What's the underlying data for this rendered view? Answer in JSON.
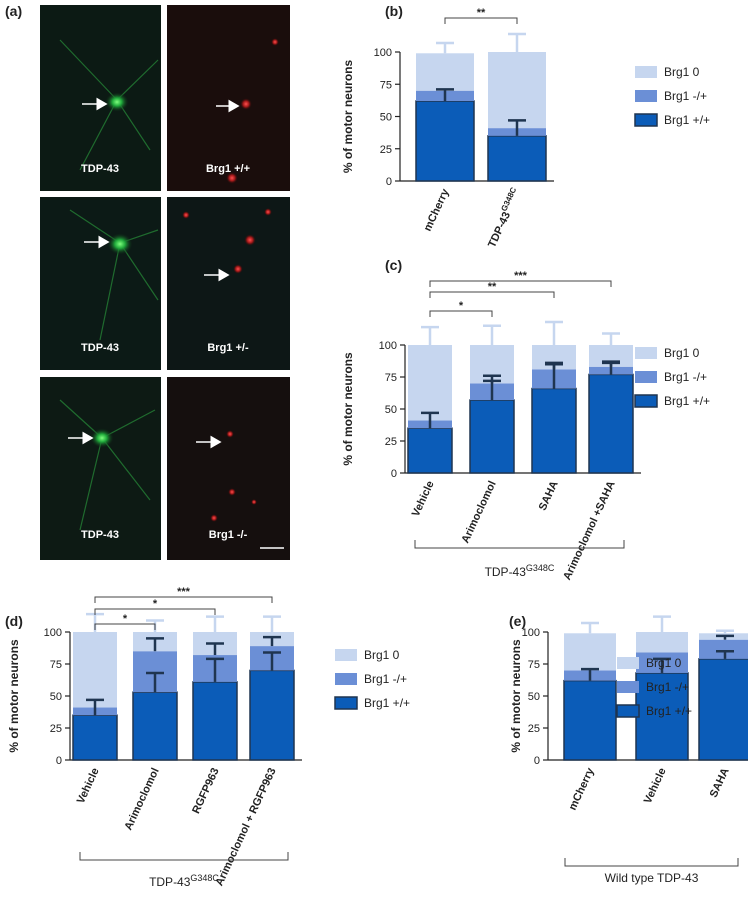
{
  "panel_a": {
    "label": "(a)",
    "rows": [
      {
        "left": "TDP-43",
        "right": "Brg1 +/+"
      },
      {
        "left": "TDP-43",
        "right": "Brg1 +/-"
      },
      {
        "left": "TDP-43",
        "right": "Brg1 -/-"
      }
    ]
  },
  "chart_data": [
    {
      "type": "stacked_bar",
      "label": "(b)",
      "y_label": "% of motor neurons",
      "categories": [
        "mCherry",
        "TDP-43"
      ],
      "category_superscripts": [
        null,
        "G348C"
      ],
      "ylim": [
        0,
        100
      ],
      "yticks": [
        0,
        25,
        50,
        75,
        100
      ],
      "series": [
        {
          "name": "Brg1 +/+",
          "color": "#0b5cb8",
          "values": [
            62,
            35
          ],
          "errors": [
            9,
            12
          ]
        },
        {
          "name": "Brg1 -/+",
          "color": "#6b8fd6",
          "values": [
            8,
            6
          ],
          "errors": [
            null,
            null
          ]
        },
        {
          "name": "Brg1 0",
          "color": "#c6d6ef",
          "values": [
            29,
            59
          ],
          "errors": [
            8,
            14
          ]
        }
      ],
      "significance": [
        {
          "pair": [
            "mCherry",
            "TDP-43"
          ],
          "label": "**"
        }
      ]
    },
    {
      "type": "stacked_bar",
      "label": "(c)",
      "y_label": "% of motor neurons",
      "categories": [
        "Vehicle",
        "Arimoclomol",
        "SAHA",
        "Arimoclomol +SAHA"
      ],
      "ylim": [
        0,
        100
      ],
      "yticks": [
        0,
        25,
        50,
        75,
        100
      ],
      "series": [
        {
          "name": "Brg1 +/+",
          "color": "#0b5cb8",
          "values": [
            35,
            57,
            66,
            77
          ],
          "errors": [
            12,
            15,
            19,
            9
          ]
        },
        {
          "name": "Brg1 -/+",
          "color": "#6b8fd6",
          "values": [
            6,
            13,
            15,
            6
          ],
          "errors": [
            null,
            6,
            5,
            4
          ]
        },
        {
          "name": "Brg1 0",
          "color": "#c6d6ef",
          "values": [
            59,
            30,
            19,
            17
          ],
          "errors": [
            14,
            15,
            18,
            9
          ]
        }
      ],
      "significance": [
        {
          "pair": [
            "Vehicle",
            "Arimoclomol"
          ],
          "label": "*"
        },
        {
          "pair": [
            "Vehicle",
            "SAHA"
          ],
          "label": "**"
        },
        {
          "pair": [
            "Vehicle",
            "Arimoclomol +SAHA"
          ],
          "label": "***"
        }
      ],
      "group_label": {
        "text": "TDP-43",
        "sup": "G348C"
      }
    },
    {
      "type": "stacked_bar",
      "label": "(d)",
      "y_label": "% of motor neurons",
      "categories": [
        "Vehicle",
        "Arimoclomol",
        "RGFP963",
        "Arimoclomol + RGFP963"
      ],
      "ylim": [
        0,
        100
      ],
      "yticks": [
        0,
        25,
        50,
        75,
        100
      ],
      "series": [
        {
          "name": "Brg1 +/+",
          "color": "#0b5cb8",
          "values": [
            35,
            53,
            61,
            70
          ],
          "errors": [
            12,
            15,
            18,
            14
          ]
        },
        {
          "name": "Brg1 -/+",
          "color": "#6b8fd6",
          "values": [
            6,
            32,
            21,
            19
          ],
          "errors": [
            null,
            10,
            9,
            7
          ]
        },
        {
          "name": "Brg1 0",
          "color": "#c6d6ef",
          "values": [
            59,
            15,
            18,
            11
          ],
          "errors": [
            14,
            9,
            12,
            12
          ]
        }
      ],
      "significance": [
        {
          "pair": [
            "Vehicle",
            "Arimoclomol"
          ],
          "label": "*"
        },
        {
          "pair": [
            "Vehicle",
            "RGFP963"
          ],
          "label": "*"
        },
        {
          "pair": [
            "Vehicle",
            "Arimoclomol + RGFP963"
          ],
          "label": "***"
        }
      ],
      "group_label": {
        "text": "TDP-43",
        "sup": "G348C"
      }
    },
    {
      "type": "stacked_bar",
      "label": "(e)",
      "y_label": "% of motor neurons",
      "categories": [
        "mCherry",
        "Vehicle",
        "SAHA"
      ],
      "ylim": [
        0,
        100
      ],
      "yticks": [
        0,
        25,
        50,
        75,
        100
      ],
      "series": [
        {
          "name": "Brg1 +/+",
          "color": "#0b5cb8",
          "values": [
            62,
            68,
            79
          ],
          "errors": [
            9,
            11,
            6
          ]
        },
        {
          "name": "Brg1 -/+",
          "color": "#6b8fd6",
          "values": [
            8,
            16,
            15
          ],
          "errors": [
            null,
            null,
            3
          ]
        },
        {
          "name": "Brg1 0",
          "color": "#c6d6ef",
          "values": [
            29,
            16,
            5
          ],
          "errors": [
            8,
            12,
            2
          ]
        }
      ],
      "significance": [],
      "group_label": {
        "text": "Wild type TDP-43"
      }
    }
  ]
}
